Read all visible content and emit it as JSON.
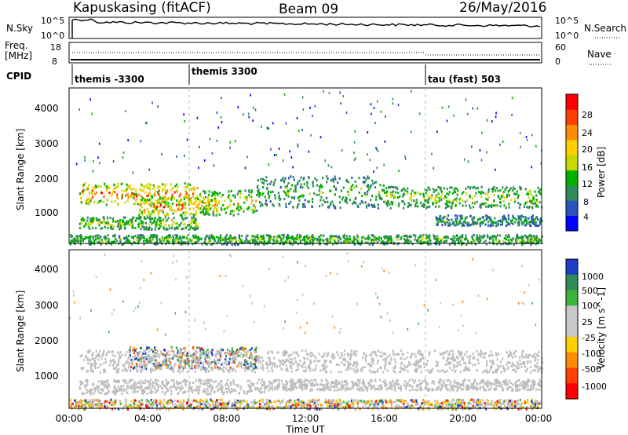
{
  "header": {
    "station": "Kapuskasing (fitACF)",
    "beam": "Beam 09",
    "date": "26/May/2016"
  },
  "noise_panel": {
    "left_label": "N.Sky",
    "right_label": "N.Search",
    "left_ticks": [
      "10^5",
      "10^0"
    ],
    "right_ticks": [
      "10^5",
      "10^0"
    ]
  },
  "freq_panel": {
    "left_label_1": "Freq.",
    "left_label_2": "[MHz]",
    "right_label": "Nave",
    "left_ticks": [
      "18",
      "8"
    ],
    "right_ticks": [
      "60",
      "0"
    ]
  },
  "cpid": {
    "label": "CPID",
    "segments": [
      {
        "name": "themis -3300",
        "start_hour": 0
      },
      {
        "name": "themis 3300",
        "start_hour": 6
      },
      {
        "name": "tau (fast) 503",
        "start_hour": 18
      }
    ]
  },
  "colors": {
    "power": [
      "#0000ff",
      "#2a52be",
      "#2e8b57",
      "#00b000",
      "#c8d800",
      "#ffd000",
      "#ff8c00",
      "#ff4000",
      "#ff0000"
    ],
    "velocity": [
      "#1e3cc8",
      "#2e8b57",
      "#3cb43c",
      "#c8c8c8",
      "#c8c8c8",
      "#ffd000",
      "#ff8c00",
      "#ff4000",
      "#ff0000"
    ],
    "ground_scatter": "#bebebe"
  },
  "chart_data": [
    {
      "type": "heatmap",
      "name": "power",
      "ylabel": "Slant Range [km]",
      "ylim": [
        180,
        4550
      ],
      "yticks": [
        "1000",
        "2000",
        "3000",
        "4000"
      ],
      "xlim": [
        0,
        24
      ],
      "colorbar_label": "Power [dB]",
      "colorbar_ticks": [
        "4",
        "8",
        "12",
        "16",
        "20",
        "24",
        "28"
      ],
      "bands": [
        {
          "t0": 0.5,
          "t1": 6.5,
          "r0": 1300,
          "r1": 1900,
          "peak_db": 30
        },
        {
          "t0": 3.5,
          "t1": 7.5,
          "r0": 1000,
          "r1": 1500,
          "peak_db": 30
        },
        {
          "t0": 0.5,
          "t1": 6.5,
          "r0": 600,
          "r1": 950,
          "peak_db": 20
        },
        {
          "t0": 6.5,
          "t1": 9.5,
          "r0": 1000,
          "r1": 1700,
          "peak_db": 24
        },
        {
          "t0": 9.5,
          "t1": 16.0,
          "r0": 1200,
          "r1": 2100,
          "peak_db": 16
        },
        {
          "t0": 16.0,
          "t1": 24.0,
          "r0": 1200,
          "r1": 1800,
          "peak_db": 20
        },
        {
          "t0": 18.5,
          "t1": 24.0,
          "r0": 700,
          "r1": 1000,
          "peak_db": 14
        },
        {
          "t0": 0.0,
          "t1": 24.0,
          "r0": 180,
          "r1": 450,
          "peak_db": 18
        }
      ]
    },
    {
      "type": "heatmap",
      "name": "velocity",
      "ylabel": "Slant Range [km]",
      "xlabel": "Time UT",
      "ylim": [
        180,
        4550
      ],
      "yticks": [
        "1000",
        "2000",
        "3000",
        "4000"
      ],
      "xlim": [
        0,
        24
      ],
      "xticks": [
        "00:00",
        "04:00",
        "08:00",
        "12:00",
        "16:00",
        "20:00",
        "00:00"
      ],
      "colorbar_label": "Velocity [m s^-1]",
      "colorbar_ticks": [
        "1000",
        "500",
        "100",
        "25",
        "-25",
        "-100",
        "-500",
        "-1000"
      ],
      "bands": [
        {
          "t0": 3.0,
          "t1": 9.5,
          "r0": 1300,
          "r1": 1900,
          "kind": "flow"
        },
        {
          "t0": 0.5,
          "t1": 24.0,
          "r0": 1200,
          "r1": 1800,
          "kind": "ground"
        },
        {
          "t0": 0.5,
          "t1": 10.0,
          "r0": 600,
          "r1": 1000,
          "kind": "ground"
        },
        {
          "t0": 10.0,
          "t1": 24.0,
          "r0": 700,
          "r1": 1000,
          "kind": "ground"
        },
        {
          "t0": 0.0,
          "t1": 24.0,
          "r0": 180,
          "r1": 450,
          "kind": "mixed"
        }
      ]
    }
  ]
}
